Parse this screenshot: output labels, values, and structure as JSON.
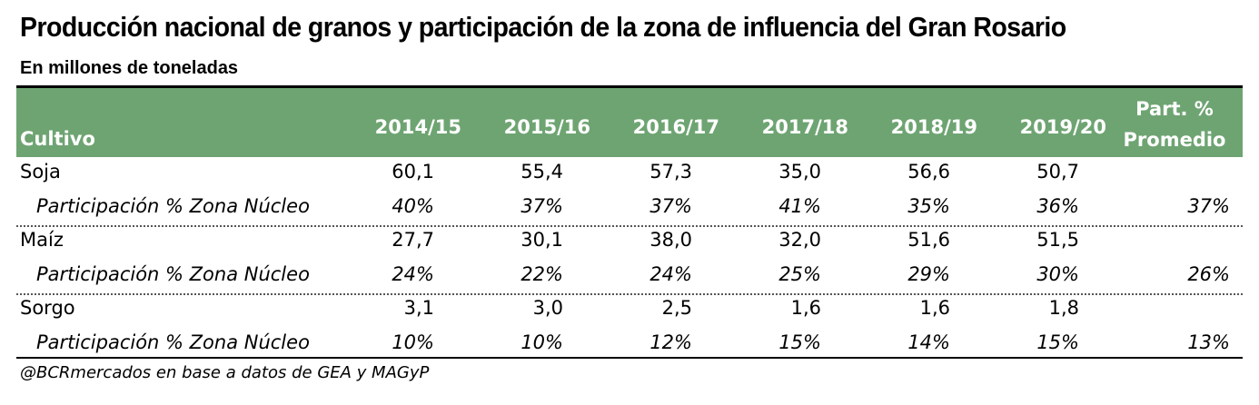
{
  "chart_data": {
    "type": "table",
    "title": "Producción nacional de granos y participación de la zona de influencia del Gran Rosario",
    "subtitle": "En millones de toneladas",
    "header": {
      "first_col": "Cultivo",
      "years": [
        "2014/15",
        "2015/16",
        "2016/17",
        "2017/18",
        "2018/19",
        "2019/20"
      ],
      "part_line1": "Part. %",
      "part_line2": "Promedio"
    },
    "rows": [
      {
        "label": "Soja",
        "italic": false,
        "values": [
          "60,1",
          "55,4",
          "57,3",
          "35,0",
          "56,6",
          "50,7"
        ],
        "avg": ""
      },
      {
        "label": "Participación % Zona Núcleo",
        "italic": true,
        "values": [
          "40%",
          "37%",
          "37%",
          "41%",
          "35%",
          "36%"
        ],
        "avg": "37%"
      },
      {
        "label": "Maíz",
        "italic": false,
        "values": [
          "27,7",
          "30,1",
          "38,0",
          "32,0",
          "51,6",
          "51,5"
        ],
        "avg": ""
      },
      {
        "label": "Participación % Zona Núcleo",
        "italic": true,
        "values": [
          "24%",
          "22%",
          "24%",
          "25%",
          "29%",
          "30%"
        ],
        "avg": "26%"
      },
      {
        "label": "Sorgo",
        "italic": false,
        "values": [
          "3,1",
          "3,0",
          "2,5",
          "1,6",
          "1,6",
          "1,8"
        ],
        "avg": ""
      },
      {
        "label": "Participación % Zona Núcleo",
        "italic": true,
        "values": [
          "10%",
          "10%",
          "12%",
          "15%",
          "14%",
          "15%"
        ],
        "avg": "13%"
      }
    ],
    "source": "@BCRmercados en base a datos de GEA y MAGyP",
    "colors": {
      "header_bg": "#6ea472",
      "header_text": "#ffffff"
    }
  }
}
